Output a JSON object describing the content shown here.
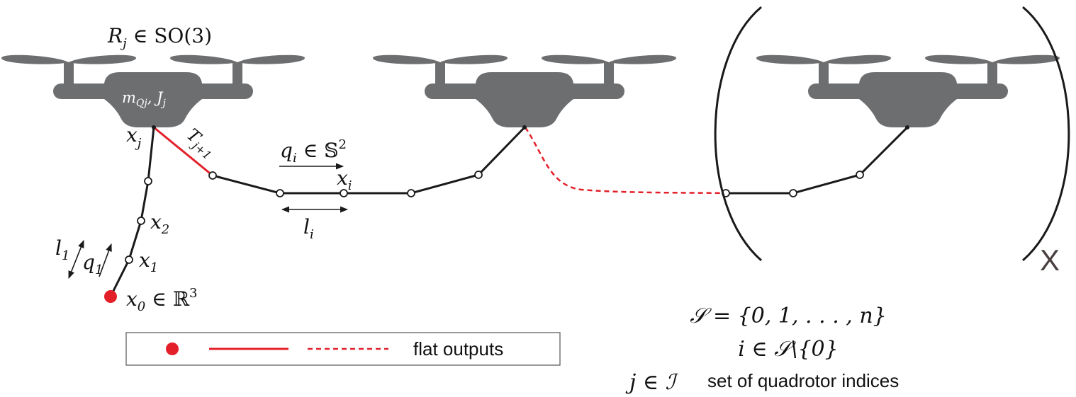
{
  "colors": {
    "quad": "#6d6e70",
    "red": "#e3202a",
    "black": "#1a1a1a"
  },
  "labels": {
    "rotation": "R",
    "rotation_sub": "j",
    "rotation_rest": " ∈ SO(3)",
    "mass": "m",
    "mass_sub": "Qj",
    "mass_rest": ", J",
    "mass_rest_sub": "j",
    "xj": "x",
    "xj_sub": "j",
    "tension": "T",
    "tension_sub": "j+1",
    "qi": "q",
    "qi_sub": "i",
    "qi_rest": " ∈ 𝕊",
    "qi_sup": "2",
    "xi": "x",
    "xi_sub": "i",
    "li": "l",
    "li_sub": "i",
    "x2": "x",
    "x2_sub": "2",
    "x1": "x",
    "x1_sub": "1",
    "l1": "l",
    "l1_sub": "1",
    "q1": "q",
    "q1_sub": "1",
    "x0": "x",
    "x0_sub": "0",
    "x0_rest": " ∈ ℝ",
    "x0_sup": "3",
    "multiplier": "X"
  },
  "legend": {
    "text": "flat outputs"
  },
  "definitions": {
    "set_s": "𝒮 = {0, 1, . . . , n}",
    "index_i": "i ∈ 𝒮\\{0}",
    "index_j": "j ∈ ℐ",
    "index_j_text": "set of quadrotor indices"
  }
}
